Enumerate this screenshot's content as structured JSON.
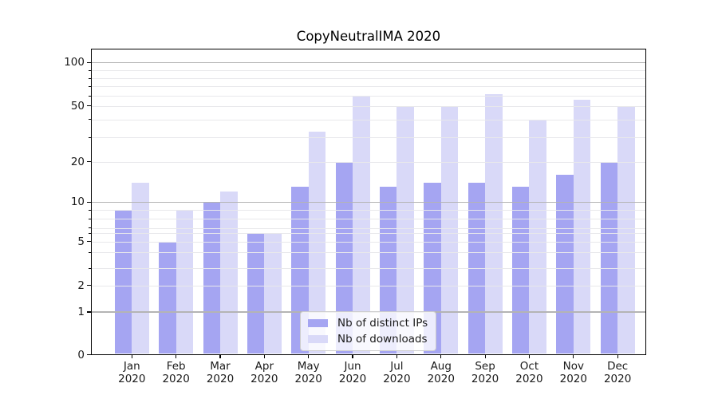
{
  "chart_data": {
    "type": "bar",
    "title": "CopyNeutralIMA 2020",
    "categories": [
      "Jan",
      "Feb",
      "Mar",
      "Apr",
      "May",
      "Jun",
      "Jul",
      "Aug",
      "Sep",
      "Oct",
      "Nov",
      "Dec"
    ],
    "category_year": "2020",
    "series": [
      {
        "name": "Nb of distinct IPs",
        "color": "#a5a5f2",
        "values": [
          9,
          5,
          10,
          6,
          13,
          20,
          13,
          14,
          14,
          13,
          16,
          20
        ]
      },
      {
        "name": "Nb of downloads",
        "color": "#d9d9f8",
        "values": [
          14,
          9,
          12,
          6,
          33,
          59,
          50,
          50,
          62,
          39,
          56,
          50
        ]
      }
    ],
    "yscale": "symlog (linear 0-1, log above 1)",
    "ylim": [
      0,
      126
    ],
    "yticks": [
      0,
      1,
      2,
      5,
      10,
      20,
      50,
      100
    ],
    "yticks_minor": [
      3,
      4,
      6,
      7,
      8,
      9,
      30,
      40,
      60,
      70,
      80,
      90
    ],
    "grid": "horizontal, major and minor",
    "legend": {
      "position": "lower center"
    }
  },
  "colors": {
    "bar_dark": "#a5a5f2",
    "bar_light": "#d9d9f8",
    "grid_decade": "#b4b4b4",
    "grid_minor": "#e8e8eb",
    "spine": "#000000",
    "text": "#1a1a1a",
    "legend_border": "#cccccc",
    "legend_bg": "rgba(255,255,255,0.8)"
  }
}
